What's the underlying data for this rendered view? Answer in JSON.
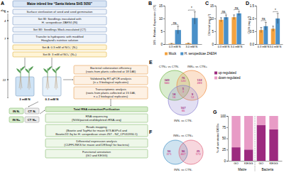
{
  "chart_data": [
    {
      "type": "bar",
      "title": "B",
      "y_label": "16S - Relative Expression (CT)",
      "categories": [
        "0.3 mM N",
        "3.0 mM N"
      ],
      "series": [
        {
          "name": "Mock",
          "color": "#f4a340",
          "values": [
            0.2,
            0.3
          ],
          "errors": [
            0.1,
            0.1
          ]
        },
        {
          "name": "H. seropedicae ZAE94",
          "color": "#4a90c8",
          "values": [
            5.5,
            10.2
          ],
          "errors": [
            1.5,
            2.4
          ]
        }
      ],
      "ylim": [
        0,
        15
      ],
      "yticks": [
        0,
        5,
        10,
        15
      ],
      "annotations": [
        "ns",
        "*"
      ],
      "legend": "bottom"
    },
    {
      "type": "bar",
      "title": "C",
      "y_label": "Chl total (mg g⁻¹)",
      "categories": [
        "0.3 mM N",
        "3.0 mM N"
      ],
      "series": [
        {
          "color": "#f4a340",
          "values": [
            9.5,
            10.5
          ],
          "errors": [
            0.8,
            0.9
          ]
        },
        {
          "color": "#4a90c8",
          "values": [
            10.5,
            12
          ],
          "errors": [
            0.9,
            0.8
          ]
        }
      ],
      "ylim": [
        0,
        15
      ],
      "yticks": [
        0,
        5,
        10,
        15
      ],
      "annotations": [
        "ns",
        "ns"
      ]
    },
    {
      "type": "bar",
      "title": "D",
      "y_label": "Chl b (mg g⁻¹)",
      "categories": [
        "0.3 mM N",
        "3.0 mM N"
      ],
      "series": [
        {
          "color": "#f4a340",
          "values": [
            0.55,
            0.6
          ],
          "errors": [
            0.1,
            0.1
          ]
        },
        {
          "color": "#4a90c8",
          "values": [
            0.7,
            1.0
          ],
          "errors": [
            0.15,
            0.2
          ]
        }
      ],
      "ylim": [
        0,
        1.5
      ],
      "yticks": [
        {
          "value": 0,
          "label": "0.0"
        },
        0.5,
        {
          "value": 1,
          "label": "1.0"
        },
        1.5
      ],
      "annotations": [
        "ns",
        "*"
      ]
    },
    {
      "type": "bar",
      "stacked": true,
      "title": "G",
      "y_label": "% of annotated DEGs",
      "categories": [
        "GO",
        "KEGG",
        "GO",
        "KEGG"
      ],
      "group_labels": [
        "Maize",
        "Bacteria"
      ],
      "series": [
        {
          "name": "up-regulated",
          "color": "#9c2a7f",
          "values": [
            30,
            25,
            80,
            70
          ]
        },
        {
          "name": "down-regulated",
          "color": "#e89bc6",
          "values": [
            70,
            75,
            20,
            30
          ]
        }
      ],
      "ylim": [
        0,
        100
      ],
      "yticks": [
        0,
        25,
        50,
        75,
        100
      ],
      "legend": "outside"
    }
  ],
  "diagram": {
    "flowchart": {
      "label": "A",
      "day_label": "day",
      "days": [
        0,
        4,
        7,
        22
      ],
      "title": "Maize inbred line “Santa Helena SHS 5050”",
      "steps": [
        [
          "Surface sterilization of seed and seed germination"
        ],
        [
          "Set BI: Seedlings inoculated with",
          "H. seropedicae ZAE94 (IN)"
        ],
        [
          "Set BII: Seedlings Mock-inoculated (CT)"
        ],
        [
          "Transfer to hydroponic with modified",
          "Hoagland's nutritive solution"
        ],
        [
          "Set A: 0.3 mM of NO₃⁻ (N-)"
        ],
        [
          "Set B: 3 mM of NO₃⁻ (N+)"
        ]
      ],
      "treatments": [
        "3 mM N",
        "0.3 mM N"
      ],
      "assays": [
        [
          "Bacterial colonization efficiency",
          "(roots from plants collected at 18 DAI)"
        ],
        [
          "Validated by RT-qPCR analysis",
          "(n = 3 biological replicates)"
        ],
        [
          "Transcriptomic analysis",
          "(roots from plants collected at 15 DAI,",
          "n = 2 biological replicates)"
        ]
      ],
      "groups": [
        "IN N-",
        "CT N-",
        "IN N+",
        "CT N+"
      ],
      "pipeline": [
        [
          "Total RNA extraction/Purification"
        ],
        [
          "RNA sequencing",
          "(NGS/paired-end/depleted rRNA-seq)"
        ],
        [
          "Reads mapping",
          "(Bowtie and TopHat for maize B73 AGPv4 and",
          "Bowtie2/2.3q for H. seropedicae strain Z67 - NZ_CP011930.1)"
        ],
        [
          "Differential expression analysis",
          "(CUFFLINKS for maize and DESeq2 for bacteria)"
        ],
        [
          "Functional annotation",
          "(GO and KEGG)"
        ]
      ]
    },
    "venns": [
      {
        "label": "E",
        "up_color": "#9c2a7f",
        "down_color": "#d9669c",
        "sets": [
          {
            "name": "CTN+ vs CTN-",
            "color": "#6db33f"
          },
          {
            "name": "INN+ vs CTN+",
            "color": "#f08a3c"
          },
          {
            "name": "INN- vs CTN-",
            "color": "#8a7fd0"
          }
        ],
        "regions": [
          {
            "up": 349,
            "down": 940
          },
          {
            "up": 132,
            "down": 289
          },
          {
            "up": 167,
            "down": 95
          },
          {
            "up": 76,
            "down": 120
          },
          {
            "up": 18,
            "down": 16
          },
          {
            "up": 9,
            "down": 12
          },
          {
            "up": 5,
            "down": 3
          }
        ]
      },
      {
        "label": "F",
        "up_color": "#9c2a7f",
        "down_color": "#d9669c",
        "sets": [
          {
            "name": "INN+ vs CTN+",
            "color": "#3f8fc4"
          },
          {
            "name": "INN- vs CTN-",
            "color": "#e0607a"
          }
        ],
        "regions": [
          {
            "up": 50,
            "down": 371
          },
          {
            "up": 96,
            "down": 467
          },
          {
            "up": 25,
            "down": 173
          }
        ]
      }
    ]
  }
}
